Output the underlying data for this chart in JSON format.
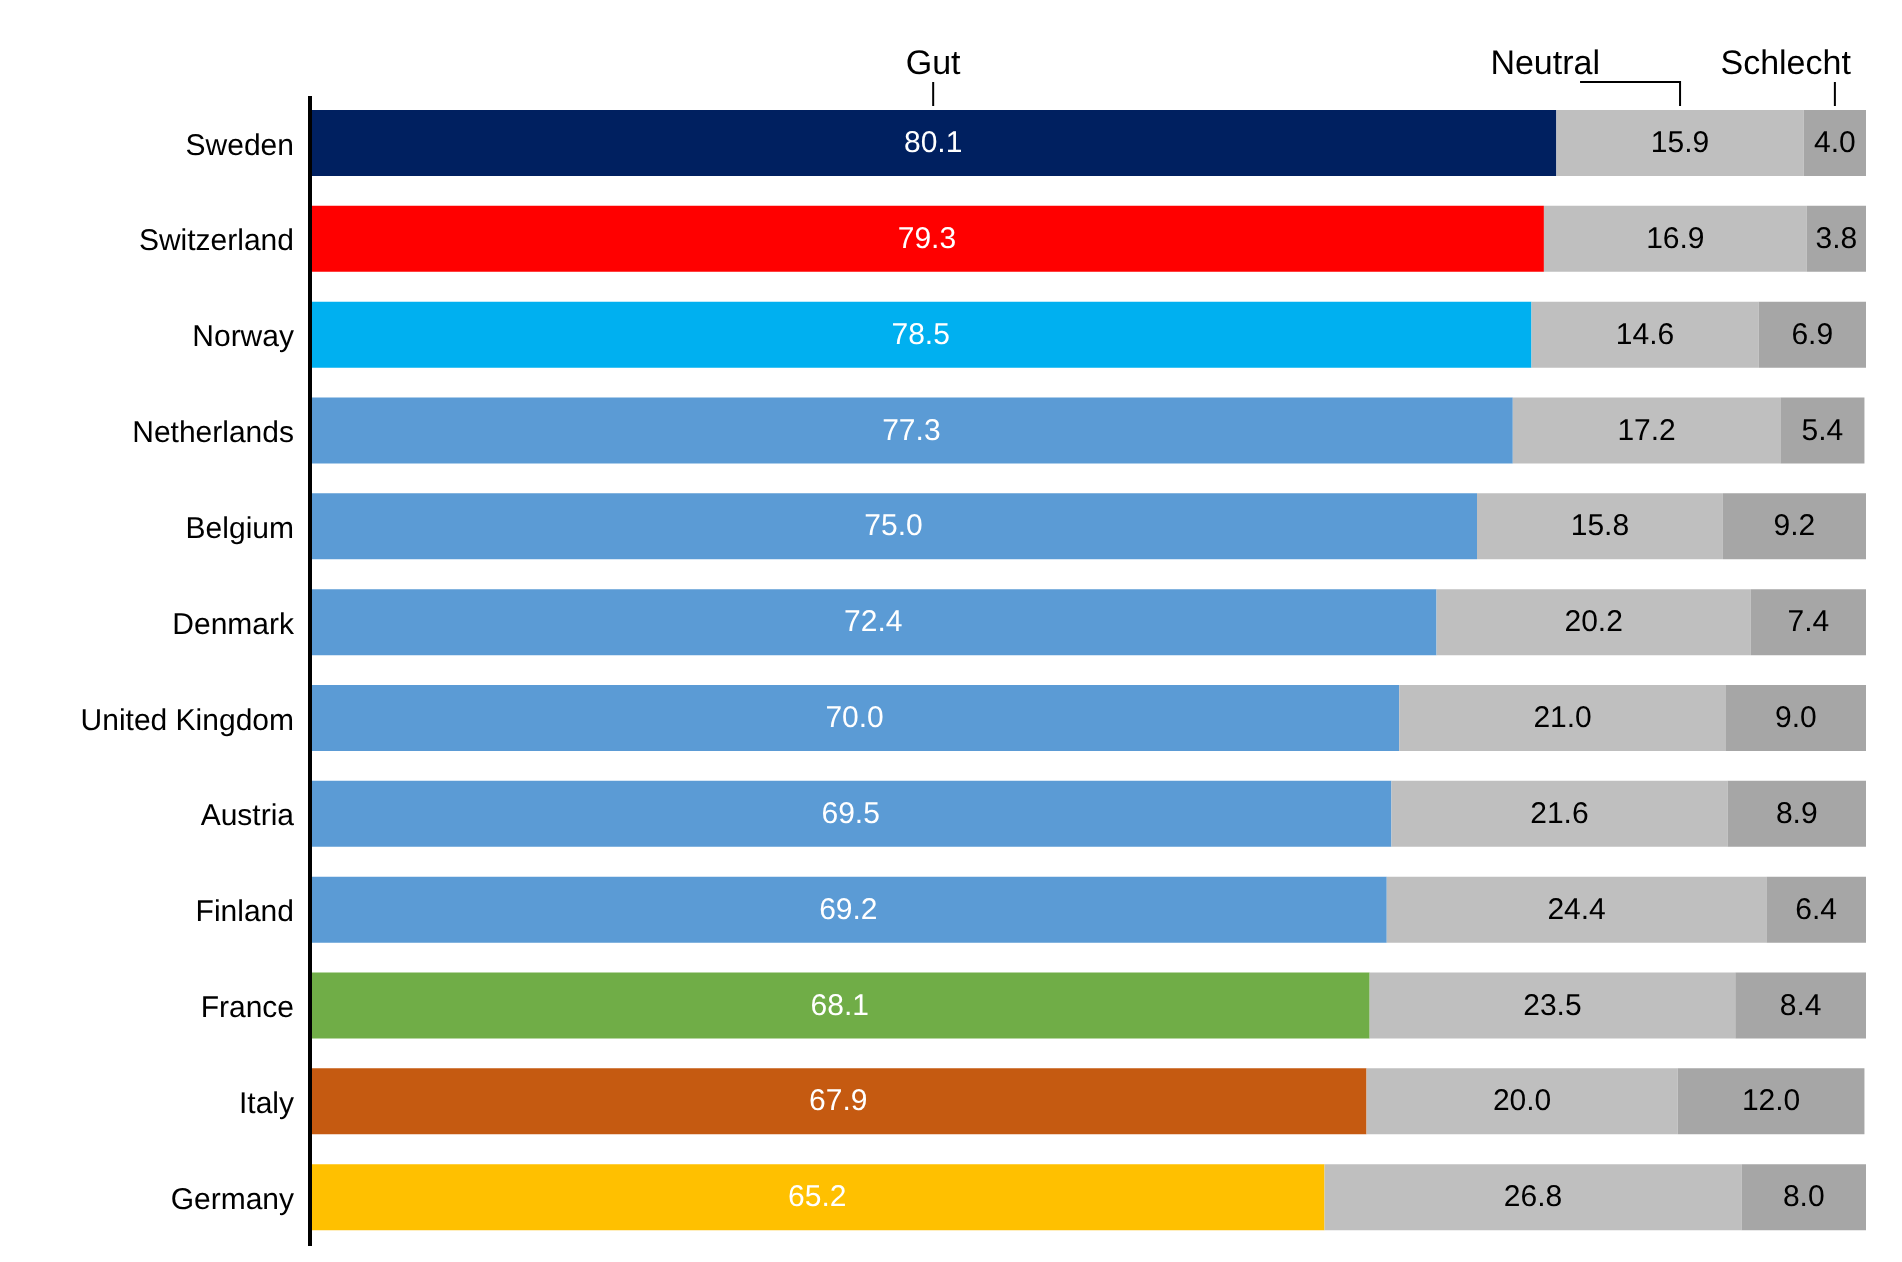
{
  "chart_data": {
    "type": "bar",
    "orientation": "horizontal",
    "stacked": true,
    "tick_labels": "y",
    "xlim": [
      0,
      100
    ],
    "categories": [
      "Sweden",
      "Switzerland",
      "Norway",
      "Netherlands",
      "Belgium",
      "Denmark",
      "United Kingdom",
      "Austria",
      "Finland",
      "France",
      "Italy",
      "Germany"
    ],
    "series": [
      {
        "name": "Gut",
        "color": "#5b9bd5",
        "colors": [
          "#002060",
          "#ff0000",
          "#00b0f0",
          "#5b9bd5",
          "#5b9bd5",
          "#5b9bd5",
          "#5b9bd5",
          "#5b9bd5",
          "#5b9bd5",
          "#70ad47",
          "#c55a11",
          "#ffc000"
        ],
        "values": [
          80.1,
          79.3,
          78.5,
          77.3,
          75.0,
          72.4,
          70.0,
          69.5,
          69.2,
          68.1,
          67.9,
          65.2
        ],
        "value_labels": [
          "80.1",
          "79.3",
          "78.5",
          "77.3",
          "75.0",
          "72.4",
          "70.0",
          "69.5",
          "69.2",
          "68.1",
          "67.9",
          "65.2"
        ]
      },
      {
        "name": "Neutral",
        "color": "#bfbfbf",
        "values": [
          15.9,
          16.9,
          14.6,
          17.2,
          15.8,
          20.2,
          21.0,
          21.6,
          24.4,
          23.5,
          20.0,
          26.8
        ],
        "value_labels": [
          "15.9",
          "16.9",
          "14.6",
          "17.2",
          "15.8",
          "20.2",
          "21.0",
          "21.6",
          "24.4",
          "23.5",
          "20.0",
          "26.8"
        ]
      },
      {
        "name": "Schlecht",
        "color": "#a6a6a6",
        "values": [
          4.0,
          3.8,
          6.9,
          5.4,
          9.2,
          7.4,
          9.0,
          8.9,
          6.4,
          8.4,
          12.0,
          8.0
        ],
        "value_labels": [
          "4.0",
          "3.8",
          "6.9",
          "5.4",
          "9.2",
          "7.4",
          "9.0",
          "8.9",
          "6.4",
          "8.4",
          "12.0",
          "8.0"
        ]
      }
    ]
  }
}
